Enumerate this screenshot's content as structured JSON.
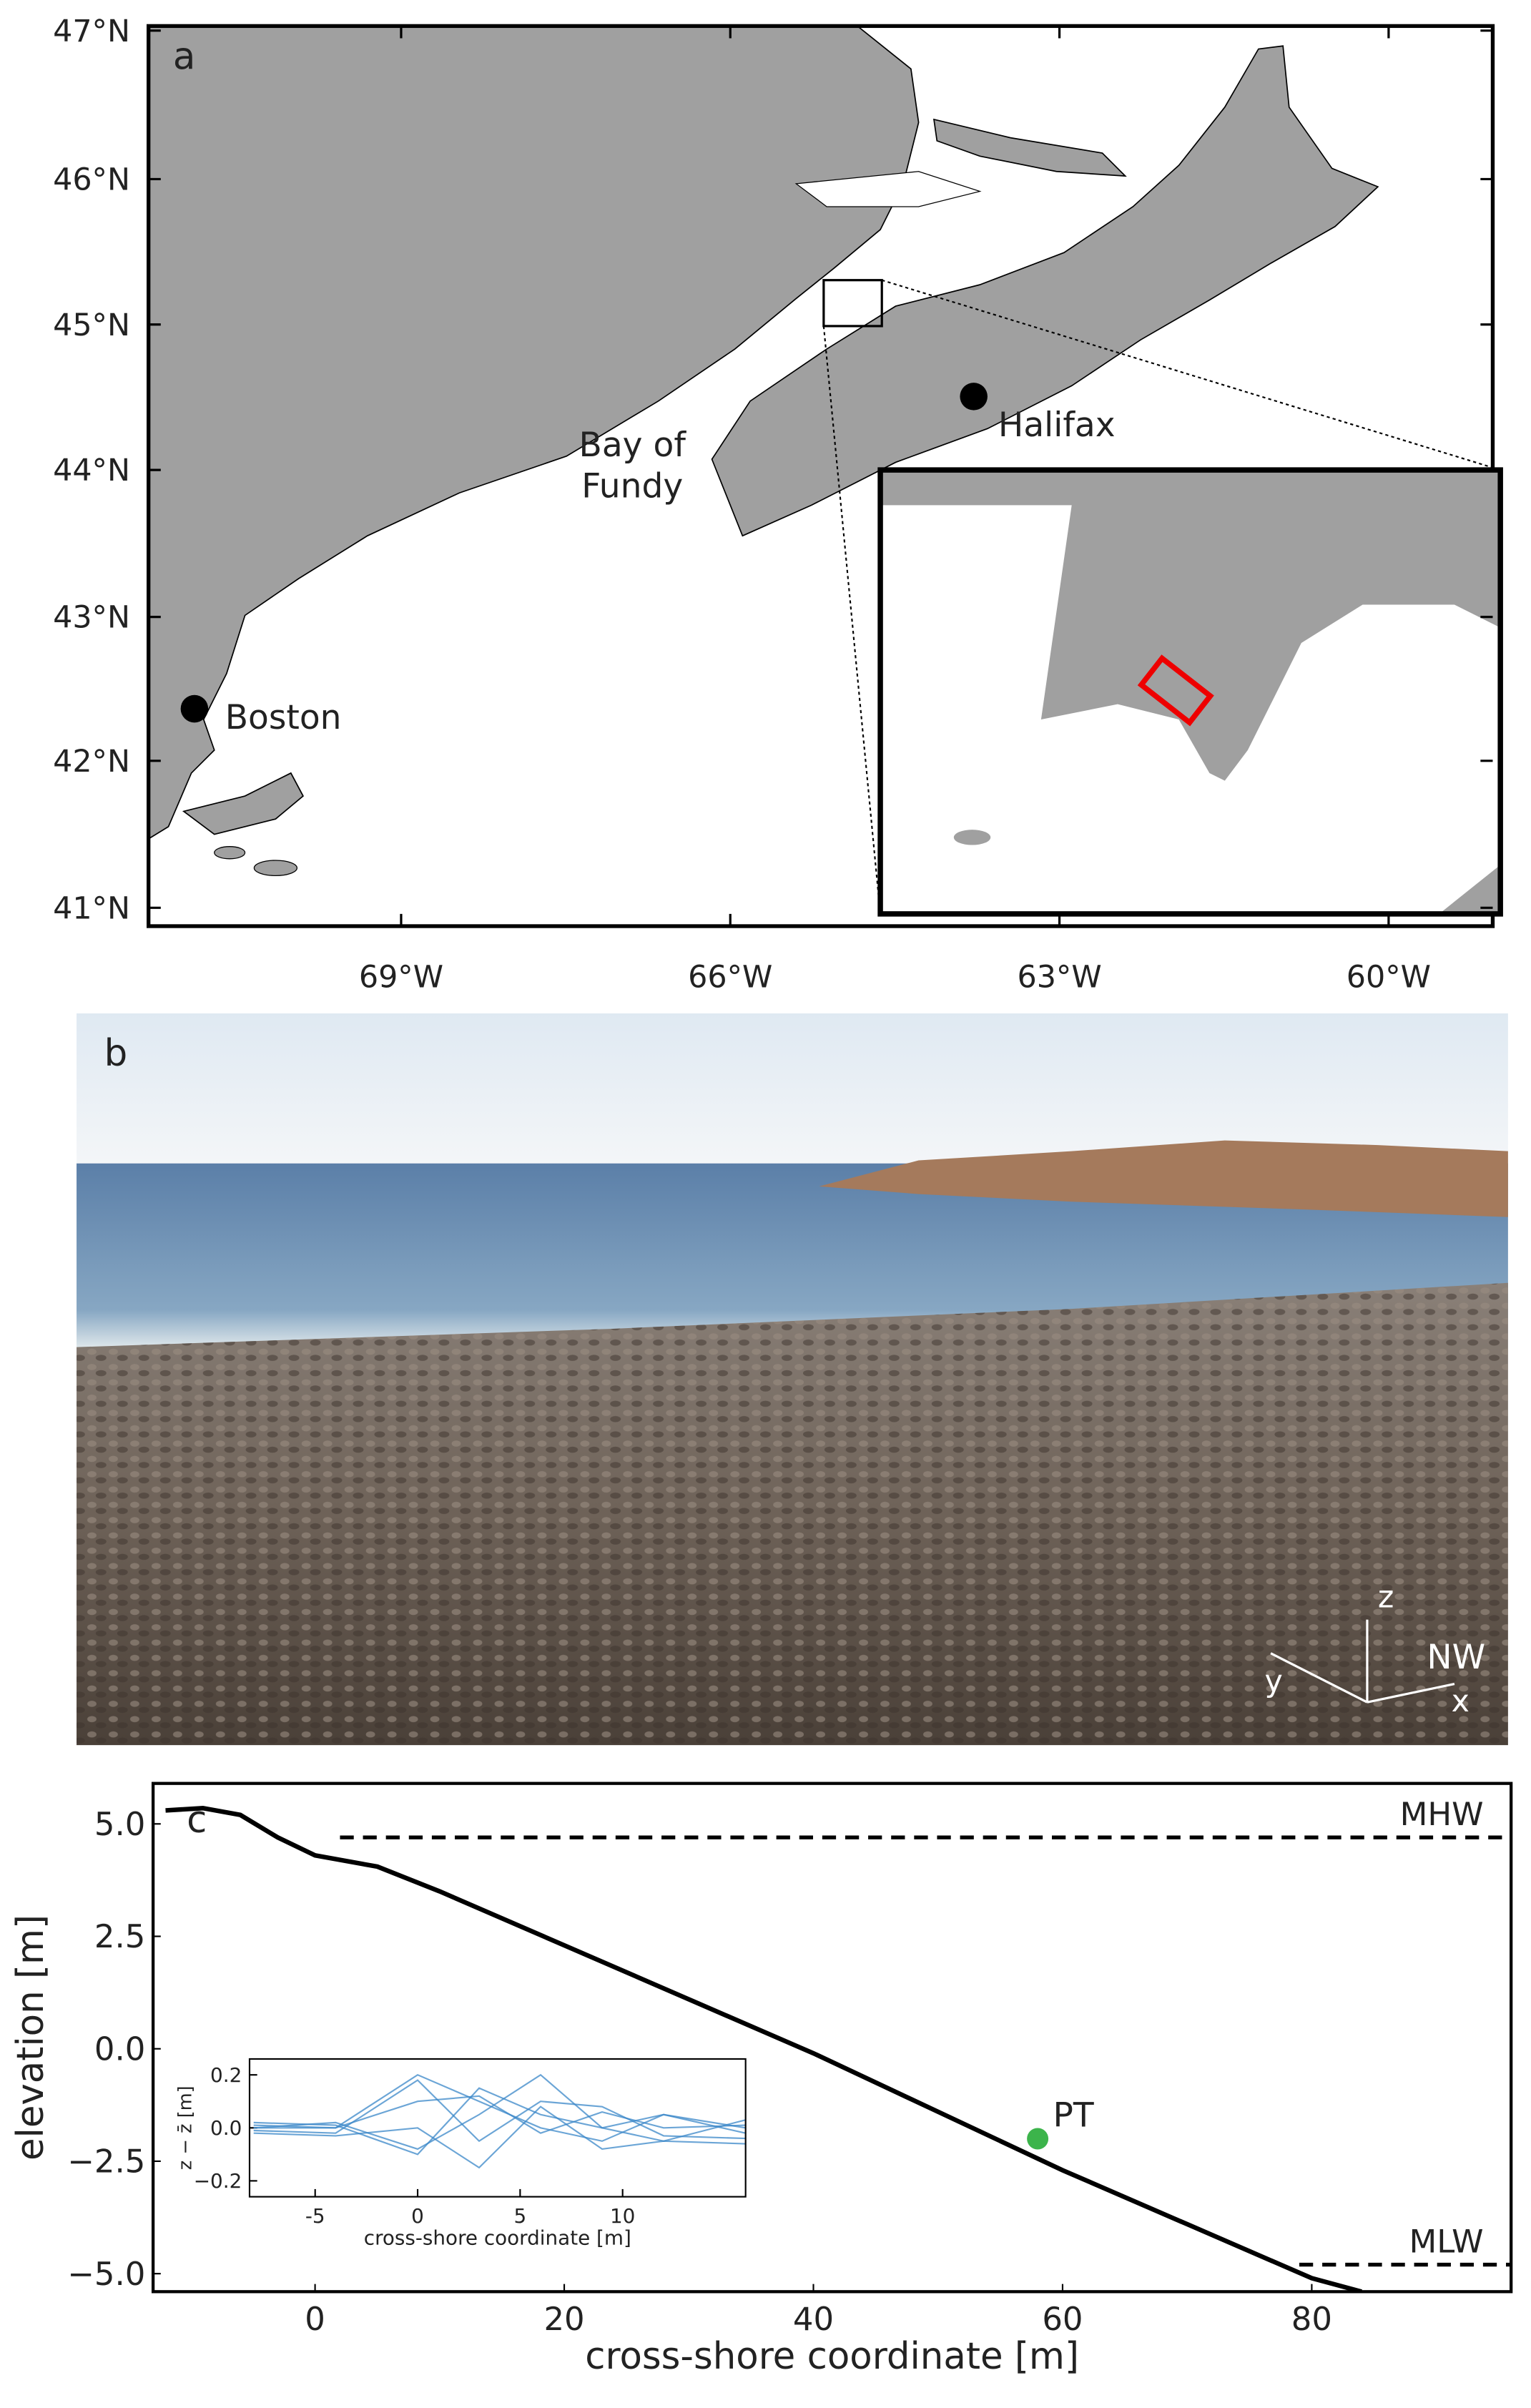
{
  "map": {
    "panel_label": "a",
    "lat_labels": [
      "47°N",
      "46°N",
      "45°N",
      "44°N",
      "43°N",
      "42°N",
      "41°N"
    ],
    "lon_labels": [
      "69°W",
      "66°W",
      "63°W",
      "60°W"
    ],
    "places": [
      {
        "label": [
          "Boston"
        ]
      },
      {
        "label": [
          "Halifax"
        ]
      },
      {
        "label": [
          "Bay of",
          "Fundy"
        ]
      }
    ]
  },
  "photo": {
    "panel_label": "b",
    "axis_labels": [
      "z",
      "y",
      "x"
    ],
    "direction": "NW"
  },
  "chart_data": [
    {
      "type": "line",
      "panel_label": "c",
      "xlabel": "cross-shore coordinate [m]",
      "ylabel": "elevation [m]",
      "xlim": [
        -13,
        96
      ],
      "ylim": [
        -5.4,
        5.9
      ],
      "xticks": [
        0,
        20,
        40,
        60,
        80
      ],
      "yticks": [
        {
          "value": 5,
          "label": "5.0"
        },
        {
          "value": 2.5,
          "label": "2.5"
        },
        {
          "value": 0,
          "label": "0.0"
        },
        {
          "value": -2.5,
          "label": "−2.5"
        },
        {
          "value": -5,
          "label": "−5.0"
        }
      ],
      "series": [
        {
          "color": "#000000",
          "x": [
            -12,
            -9,
            -6,
            -3,
            0,
            5,
            10,
            20,
            30,
            40,
            50,
            60,
            70,
            80,
            84
          ],
          "values": [
            5.3,
            5.35,
            5.2,
            4.7,
            4.3,
            4.05,
            3.5,
            2.3,
            1.1,
            -0.1,
            -1.4,
            -2.7,
            -3.9,
            -5.1,
            -5.4
          ]
        }
      ],
      "reference_lines": [
        {
          "label": "MHW",
          "y": 4.7,
          "x": [
            2,
            96
          ]
        },
        {
          "label": "MLW",
          "y": -4.8,
          "x": [
            79,
            96
          ]
        }
      ],
      "points": [
        {
          "label": "PT",
          "x": 58,
          "y": -2.0,
          "color": "#3cb44b"
        }
      ]
    },
    {
      "type": "line",
      "xlabel": "cross-shore coordinate [m]",
      "ylabel": "z − z̄ [m]",
      "xlim": [
        -8.2,
        16
      ],
      "ylim": [
        -0.26,
        0.26
      ],
      "xticks": [
        -5,
        0,
        5,
        10
      ],
      "yticks": [
        {
          "value": -0.2,
          "label": "−0.2"
        },
        {
          "value": 0,
          "label": "0.0"
        },
        {
          "value": 0.2,
          "label": "0.2"
        }
      ],
      "x": [
        -8,
        -4,
        0,
        3,
        6,
        9,
        12,
        16
      ],
      "series": [
        {
          "color": "#3a87c8",
          "values": [
            0,
            0,
            0.2,
            0.1,
            0,
            -0.05,
            0.05,
            -0.02
          ]
        },
        {
          "color": "#3a87c8",
          "values": [
            0.02,
            0.01,
            -0.1,
            0.15,
            0.05,
            0,
            -0.05,
            0.03
          ]
        },
        {
          "color": "#3a87c8",
          "values": [
            -0.01,
            -0.02,
            0.18,
            -0.05,
            0.1,
            0.08,
            -0.03,
            -0.04
          ]
        },
        {
          "color": "#3a87c8",
          "values": [
            0,
            0.02,
            -0.08,
            0.05,
            0.2,
            0,
            0.05,
            0
          ]
        },
        {
          "color": "#3a87c8",
          "values": [
            -0.02,
            -0.03,
            0,
            -0.15,
            0.08,
            -0.08,
            -0.05,
            -0.06
          ]
        },
        {
          "color": "#3a87c8",
          "values": [
            0.01,
            0,
            0.1,
            0.12,
            -0.02,
            0.06,
            0,
            0.01
          ]
        }
      ]
    }
  ]
}
